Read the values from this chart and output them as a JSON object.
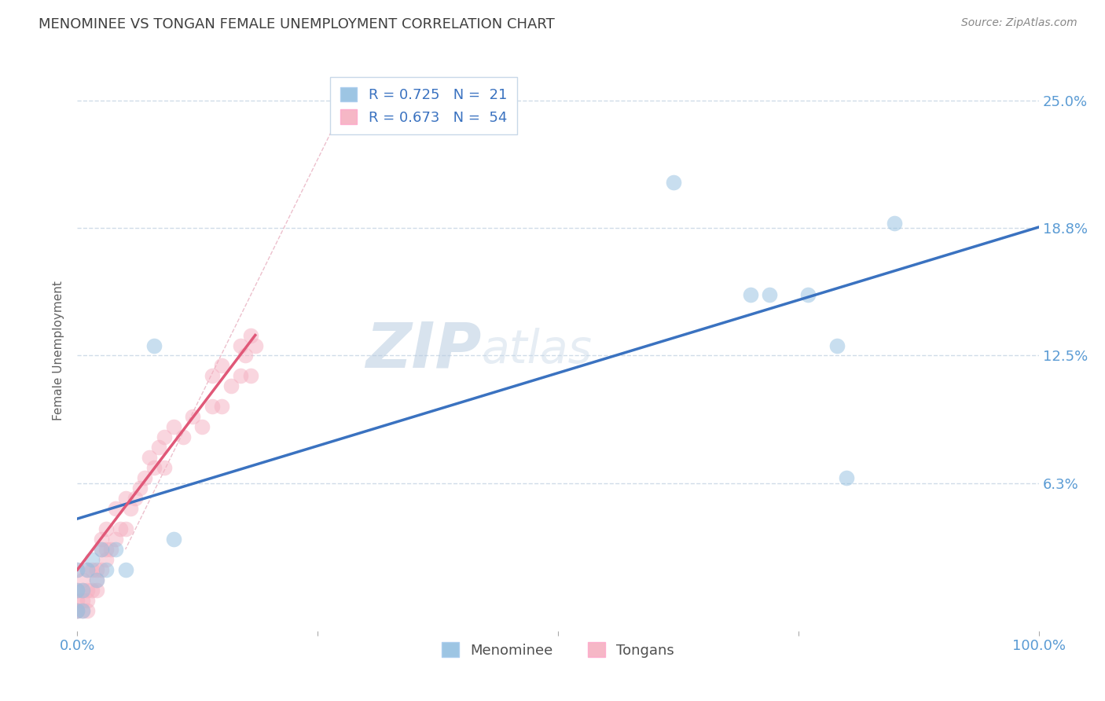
{
  "title": "MENOMINEE VS TONGAN FEMALE UNEMPLOYMENT CORRELATION CHART",
  "source": "Source: ZipAtlas.com",
  "ylabel": "Female Unemployment",
  "legend_entry1": "R = 0.725   N =  21",
  "legend_entry2": "R = 0.673   N =  54",
  "legend_label1": "Menominee",
  "legend_label2": "Tongans",
  "xlim": [
    0.0,
    1.0
  ],
  "ylim": [
    -0.01,
    0.265
  ],
  "yticks": [
    0.0625,
    0.125,
    0.1875,
    0.25
  ],
  "ytick_labels": [
    "6.3%",
    "12.5%",
    "18.8%",
    "25.0%"
  ],
  "xtick_positions": [
    0.0,
    0.25,
    0.5,
    0.75,
    1.0
  ],
  "xtick_labels": [
    "0.0%",
    "",
    "",
    "",
    "100.0%"
  ],
  "watermark_zip": "ZIP",
  "watermark_atlas": "atlas",
  "blue_color": "#92bfe0",
  "pink_color": "#f5afc0",
  "blue_line_color": "#3a72c0",
  "pink_line_color": "#e05878",
  "title_color": "#404040",
  "axis_color": "#5a9bd4",
  "grid_color": "#d0dce8",
  "menominee_x": [
    0.0,
    0.0,
    0.0,
    0.005,
    0.005,
    0.01,
    0.015,
    0.02,
    0.025,
    0.03,
    0.04,
    0.05,
    0.08,
    0.1,
    0.62,
    0.7,
    0.72,
    0.76,
    0.79,
    0.8,
    0.85
  ],
  "menominee_y": [
    0.0,
    0.01,
    0.02,
    0.0,
    0.01,
    0.02,
    0.025,
    0.015,
    0.03,
    0.02,
    0.03,
    0.02,
    0.13,
    0.035,
    0.21,
    0.155,
    0.155,
    0.155,
    0.13,
    0.065,
    0.19
  ],
  "tongan_x": [
    0.0,
    0.0,
    0.0,
    0.0,
    0.0,
    0.005,
    0.005,
    0.005,
    0.005,
    0.01,
    0.01,
    0.01,
    0.01,
    0.015,
    0.015,
    0.02,
    0.02,
    0.02,
    0.025,
    0.025,
    0.025,
    0.03,
    0.03,
    0.03,
    0.035,
    0.04,
    0.04,
    0.045,
    0.05,
    0.05,
    0.055,
    0.06,
    0.065,
    0.07,
    0.075,
    0.08,
    0.085,
    0.09,
    0.09,
    0.1,
    0.11,
    0.12,
    0.13,
    0.14,
    0.14,
    0.15,
    0.15,
    0.16,
    0.17,
    0.17,
    0.175,
    0.18,
    0.18,
    0.185
  ],
  "tongan_y": [
    0.0,
    0.0,
    0.005,
    0.01,
    0.02,
    0.0,
    0.005,
    0.01,
    0.015,
    0.0,
    0.005,
    0.01,
    0.02,
    0.01,
    0.02,
    0.01,
    0.015,
    0.02,
    0.02,
    0.03,
    0.035,
    0.025,
    0.03,
    0.04,
    0.03,
    0.035,
    0.05,
    0.04,
    0.04,
    0.055,
    0.05,
    0.055,
    0.06,
    0.065,
    0.075,
    0.07,
    0.08,
    0.07,
    0.085,
    0.09,
    0.085,
    0.095,
    0.09,
    0.1,
    0.115,
    0.1,
    0.12,
    0.11,
    0.115,
    0.13,
    0.125,
    0.115,
    0.135,
    0.13
  ],
  "blue_line": [
    0.0,
    1.0,
    0.045,
    0.188
  ],
  "pink_line": [
    0.0,
    0.185,
    0.02,
    0.135
  ],
  "diag_line_x": [
    0.28,
    0.05
  ],
  "diag_line_y": [
    0.25,
    0.03
  ]
}
